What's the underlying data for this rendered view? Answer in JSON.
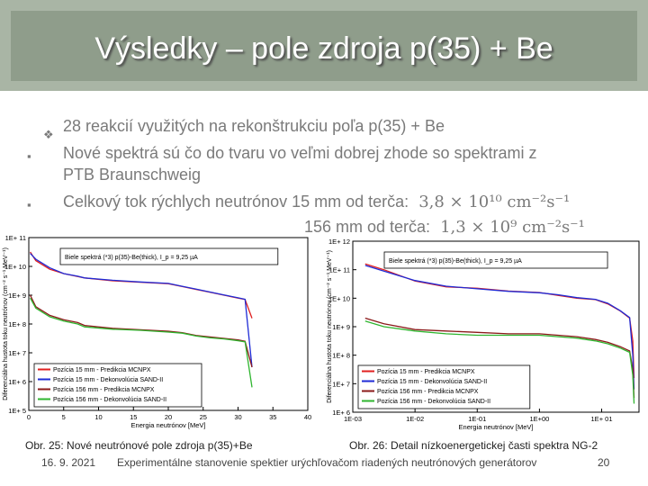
{
  "slide": {
    "title": "Výsledky – pole zdroja  p(35) + Be",
    "bullets": [
      {
        "text": "28 reakcií využitých na rekonštrukciu poľa p(35) + Be"
      },
      {
        "text": "Nové spektrá sú čo do tvaru vo veľmi dobrej zhode so spektrami z"
      },
      {
        "text": "PTB Braunschweig"
      },
      {
        "text": "Celkový tok rýchlych neutrónov 15 mm od terča:",
        "math": "3,8 × 10¹⁰ cm⁻²s⁻¹"
      },
      {
        "text": "156 mm od terča:",
        "math": "1,3 × 10⁹ cm⁻²s⁻¹"
      }
    ],
    "captions": {
      "left": "Obr. 25:  Nové neutrónové pole zdroja p(35)+Be",
      "right": "Obr. 26:  Detail nízkoenergetickej časti spektra NG-2"
    },
    "footer": {
      "date": "16. 9. 2021",
      "text": "Experimentálne stanovenie spektier urýchľovačom riadených neutrónových generátorov",
      "page": "20"
    },
    "colors": {
      "red": "#e02020",
      "blue": "#1f2bd6",
      "dkred": "#8b1a1a",
      "green": "#2fb52f"
    }
  },
  "chart_data": [
    {
      "type": "line",
      "annotation": "Biele spektrá (*3)  p(35)-Be(thick),  I_p = 9,25 µA",
      "xlabel": "Energia neutrónov  [MeV]",
      "ylabel": "Diferenciálna hustota toku neutrónov  (cm⁻² s⁻¹ MeV⁻¹)",
      "x_ticks": [
        "0",
        "5",
        "10",
        "15",
        "20",
        "25",
        "30",
        "35",
        "40"
      ],
      "y_ticks": [
        "1E+ 5",
        "1E+ 6",
        "1E+ 7",
        "1E+ 8",
        "1E+ 9",
        "1E+ 10",
        "1E+ 11"
      ],
      "xlim": [
        0,
        40
      ],
      "ylim_log10": [
        5,
        11
      ],
      "legend_position": "bottom-left",
      "series": [
        {
          "name": "Pozícia 15 mm - Predikcia MCNPX",
          "color": "#e02020",
          "x": [
            0.2,
            1,
            3,
            5,
            7,
            8,
            12,
            16,
            20,
            22,
            24,
            26,
            28,
            30,
            31,
            32
          ],
          "y": [
            10.5,
            10.2,
            9.9,
            9.75,
            9.65,
            9.6,
            9.5,
            9.45,
            9.4,
            9.3,
            9.2,
            9.1,
            9.0,
            8.9,
            8.85,
            8.2
          ]
        },
        {
          "name": "Pozícia 15 mm - Dekonvolúcia SAND-II",
          "color": "#1f2bd6",
          "x": [
            0.2,
            1,
            3,
            5,
            7,
            8,
            12,
            16,
            20,
            22,
            24,
            26,
            28,
            30,
            31,
            32
          ],
          "y": [
            10.45,
            10.25,
            9.95,
            9.75,
            9.66,
            9.6,
            9.52,
            9.46,
            9.41,
            9.31,
            9.21,
            9.11,
            9.01,
            8.91,
            8.86,
            6.5
          ]
        },
        {
          "name": "Pozícia 156 mm - Predikcia MCNPX",
          "color": "#8b1a1a",
          "x": [
            0.2,
            1,
            3,
            5,
            7,
            8,
            12,
            16,
            20,
            22,
            24,
            26,
            28,
            30,
            31,
            32
          ],
          "y": [
            9.0,
            8.6,
            8.3,
            8.15,
            8.05,
            7.95,
            7.85,
            7.8,
            7.75,
            7.7,
            7.6,
            7.55,
            7.5,
            7.45,
            7.4,
            6.5
          ]
        },
        {
          "name": "Pozícia 156 mm - Dekonvolúcia SAND-II",
          "color": "#2fb52f",
          "x": [
            0.2,
            1,
            3,
            5,
            7,
            8,
            12,
            16,
            20,
            22,
            24,
            26,
            28,
            30,
            31,
            32
          ],
          "y": [
            8.9,
            8.55,
            8.25,
            8.1,
            8.0,
            7.9,
            7.82,
            7.78,
            7.72,
            7.68,
            7.58,
            7.52,
            7.48,
            7.42,
            7.38,
            5.8
          ]
        }
      ]
    },
    {
      "type": "line",
      "annotation": "Biele spektrá (*3)  p(35)-Be(thick),  I_p = 9,25 µA",
      "xlabel": "Energia neutrónov  [MeV]",
      "ylabel": "Diferenciálna hustota toku neutrónov  (cm⁻² s⁻¹ MeV⁻¹)",
      "x_ticks": [
        "1E-03",
        "1E-02",
        "1E-01",
        "1E+00",
        "1E+ 01"
      ],
      "y_ticks": [
        "1E+ 6",
        "1E+ 7",
        "1E+ 8",
        "1E+ 9",
        "1E+ 10",
        "1E+ 11",
        "1E+ 12"
      ],
      "xlim_log10": [
        -3,
        1.6
      ],
      "ylim_log10": [
        6,
        12
      ],
      "legend_position": "bottom-left",
      "series": [
        {
          "name": "Pozícia 15 mm - Predikcia MCNPX",
          "color": "#e02020",
          "x": [
            -2.8,
            -2.5,
            -2,
            -1.5,
            -1,
            -0.5,
            0,
            0.3,
            0.6,
            0.9,
            1.1,
            1.3,
            1.45,
            1.5,
            1.52
          ],
          "y": [
            11.2,
            11.0,
            10.6,
            10.4,
            10.35,
            10.25,
            10.2,
            10.1,
            10.0,
            9.95,
            9.8,
            9.55,
            9.3,
            8.5,
            7.2
          ]
        },
        {
          "name": "Pozícia 15 mm - Dekonvolúcia SAND-II",
          "color": "#1f2bd6",
          "x": [
            -2.8,
            -2.5,
            -2,
            -1.5,
            -1,
            -0.5,
            0,
            0.3,
            0.6,
            0.9,
            1.1,
            1.3,
            1.45,
            1.5,
            1.52
          ],
          "y": [
            11.15,
            10.95,
            10.62,
            10.42,
            10.33,
            10.24,
            10.19,
            10.12,
            10.02,
            9.96,
            9.82,
            9.56,
            9.32,
            8.0,
            6.8
          ]
        },
        {
          "name": "Pozícia 156 mm - Predikcia MCNPX",
          "color": "#8b1a1a",
          "x": [
            -2.8,
            -2.5,
            -2,
            -1.5,
            -1,
            -0.5,
            0,
            0.3,
            0.6,
            0.9,
            1.1,
            1.3,
            1.45,
            1.5,
            1.52
          ],
          "y": [
            9.3,
            9.1,
            8.9,
            8.85,
            8.8,
            8.75,
            8.75,
            8.7,
            8.65,
            8.55,
            8.45,
            8.3,
            8.15,
            7.5,
            6.5
          ]
        },
        {
          "name": "Pozícia 156 mm - Dekonvolúcia SAND-II",
          "color": "#2fb52f",
          "x": [
            -2.8,
            -2.5,
            -2,
            -1.5,
            -1,
            -0.5,
            0,
            0.3,
            0.6,
            0.9,
            1.1,
            1.3,
            1.45,
            1.5,
            1.52
          ],
          "y": [
            9.2,
            9.0,
            8.85,
            8.75,
            8.7,
            8.7,
            8.7,
            8.65,
            8.6,
            8.5,
            8.4,
            8.25,
            8.1,
            7.3,
            6.3
          ]
        }
      ]
    }
  ]
}
